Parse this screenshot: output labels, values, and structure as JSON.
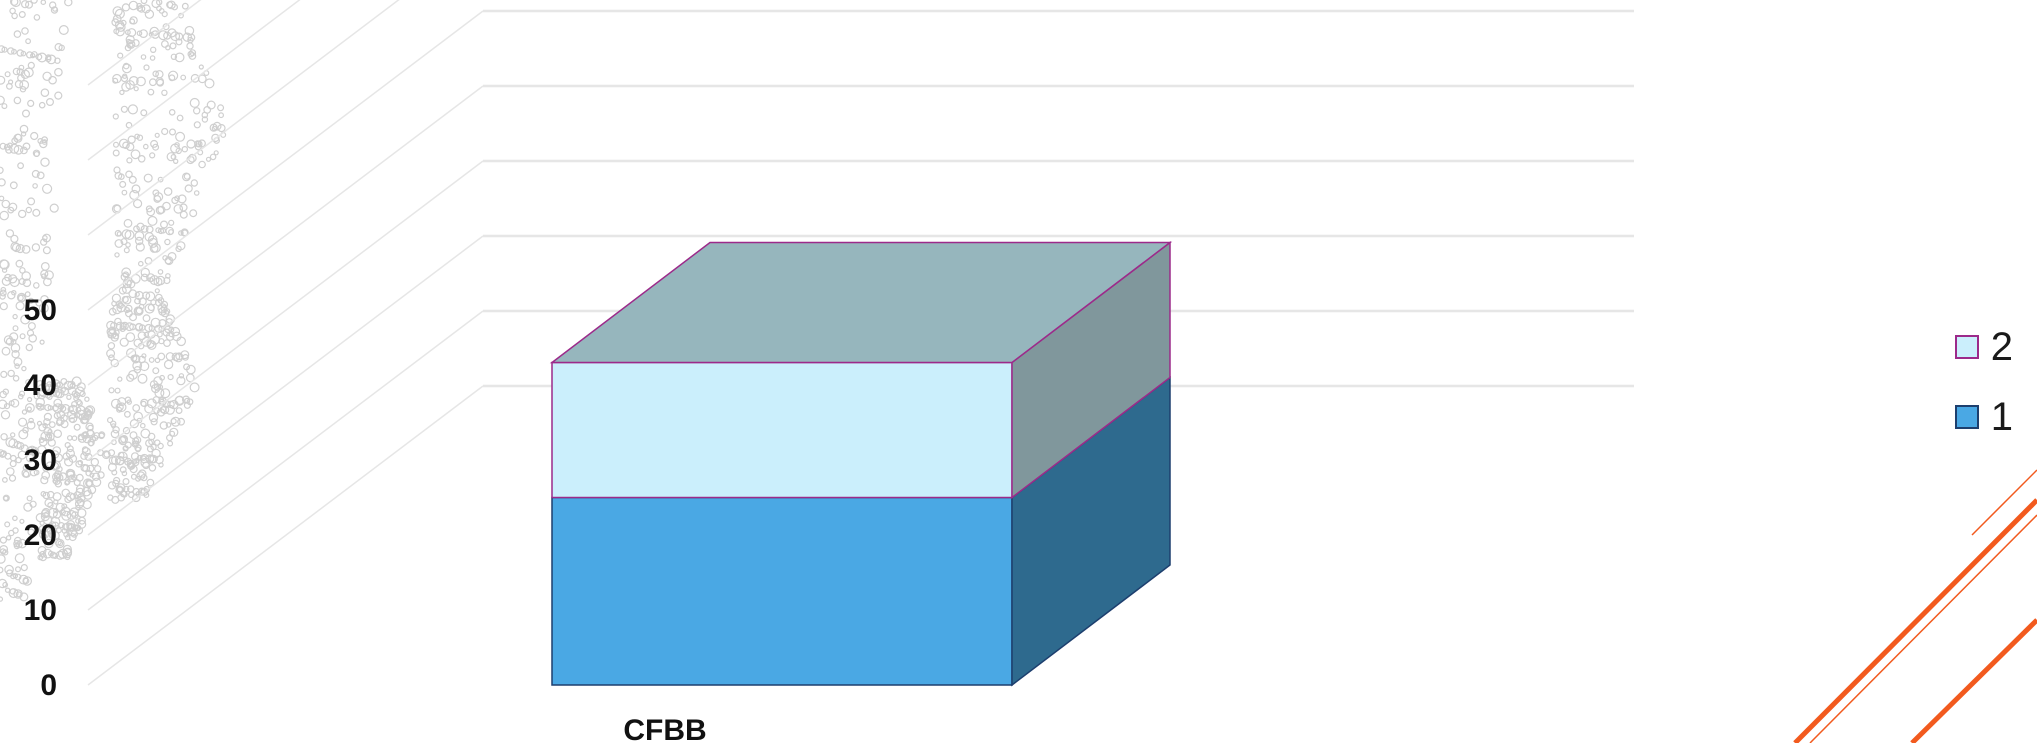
{
  "chart_data": {
    "type": "bar",
    "style": "3d-stacked-column",
    "categories": [
      "CFBB"
    ],
    "series": [
      {
        "name": "1",
        "values": [
          25
        ],
        "color": "#4aa8e4"
      },
      {
        "name": "2",
        "values": [
          18
        ],
        "color": "#cbeffc"
      }
    ],
    "yticks": [
      "0",
      "10",
      "20",
      "30",
      "40",
      "50"
    ],
    "ylim": [
      0,
      50
    ],
    "grid": true,
    "legend": "right",
    "colors": {
      "series1_side": "#2e6a8e",
      "series2_side": "#80979c",
      "top": "#96b6bd",
      "outline": "#9c2a8a",
      "grid": "#e6e6e6",
      "accent_lines": "#f25a1e",
      "dots": "#cfcfcf"
    }
  }
}
